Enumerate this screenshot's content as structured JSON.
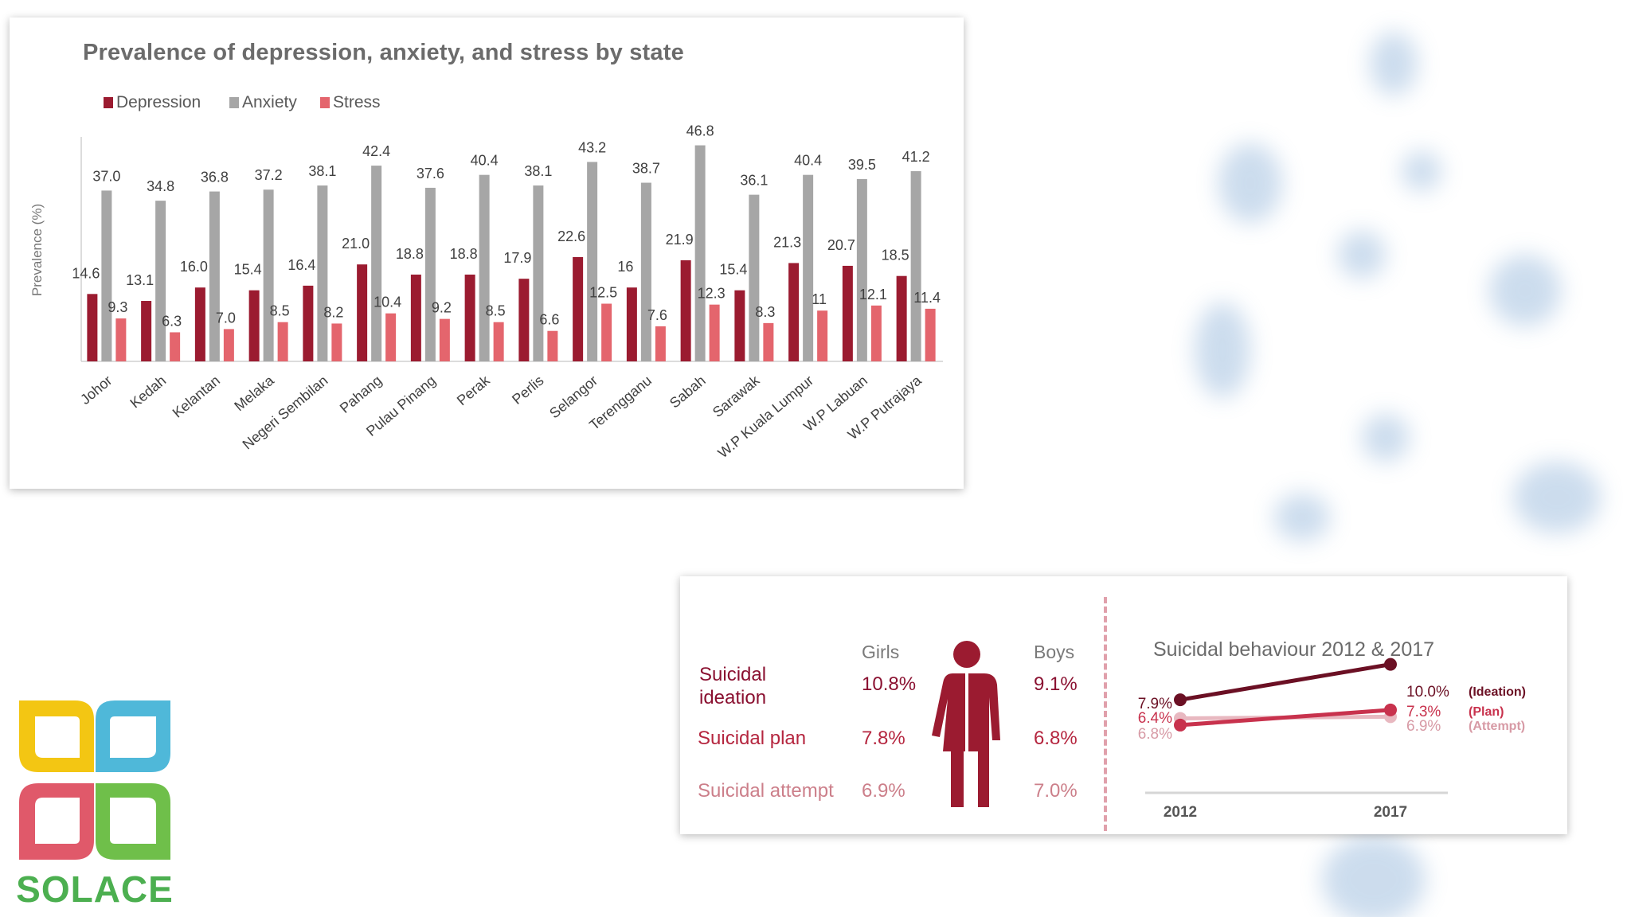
{
  "colors": {
    "depression": "#9b1b30",
    "anxiety": "#a6a6a6",
    "stress": "#e4656d",
    "ideation": "#6b1024",
    "plan": "#c8324d",
    "attempt": "#e8b8c0"
  },
  "chart_data": [
    {
      "type": "bar",
      "title": "Prevalence of depression, anxiety, and stress by state",
      "ylabel": "Prevalence (%)",
      "xlabel": "",
      "ylim": [
        0,
        50
      ],
      "legend_position": "top-left",
      "categories": [
        "Johor",
        "Kedah",
        "Kelantan",
        "Melaka",
        "Negeri Sembilan",
        "Pahang",
        "Pulau Pinang",
        "Perak",
        "Perlis",
        "Selangor",
        "Terengganu",
        "Sabah",
        "Sarawak",
        "W.P Kuala Lumpur",
        "W.P Labuan",
        "W.P Putrajaya"
      ],
      "series": [
        {
          "name": "Depression",
          "values": [
            14.6,
            13.1,
            16.0,
            15.4,
            16.4,
            21.0,
            18.8,
            18.8,
            17.9,
            22.6,
            16,
            21.9,
            15.4,
            21.3,
            20.7,
            18.5
          ],
          "labels": [
            "14.6",
            "13.1",
            "16.0",
            "15.4",
            "16.4",
            "21.0",
            "18.8",
            "18.8",
            "17.9",
            "22.6",
            "16",
            "21.9",
            "15.4",
            "21.3",
            "20.7",
            "18.5"
          ]
        },
        {
          "name": "Anxiety",
          "values": [
            37.0,
            34.8,
            36.8,
            37.2,
            38.1,
            42.4,
            37.6,
            40.4,
            38.1,
            43.2,
            38.7,
            46.8,
            36.1,
            40.4,
            39.5,
            41.2
          ],
          "labels": [
            "37.0",
            "34.8",
            "36.8",
            "37.2",
            "38.1",
            "42.4",
            "37.6",
            "40.4",
            "38.1",
            "43.2",
            "38.7",
            "46.8",
            "36.1",
            "40.4",
            "39.5",
            "41.2"
          ]
        },
        {
          "name": "Stress",
          "values": [
            9.3,
            6.3,
            7.0,
            8.5,
            8.2,
            10.4,
            9.2,
            8.5,
            6.6,
            12.5,
            7.6,
            12.3,
            8.3,
            11,
            12.1,
            11.4
          ],
          "labels": [
            "9.3",
            "6.3",
            "7.0",
            "8.5",
            "8.2",
            "10.4",
            "9.2",
            "8.5",
            "6.6",
            "12.5",
            "7.6",
            "12.3",
            "8.3",
            "11",
            "12.1",
            "11.4"
          ]
        }
      ]
    },
    {
      "type": "line",
      "title": "Suicidal behaviour 2012 & 2017",
      "x": [
        "2012",
        "2017"
      ],
      "ylim": [
        5.5,
        10.5
      ],
      "series": [
        {
          "name": "(Ideation)",
          "values": [
            7.9,
            10.0
          ],
          "labels": [
            "7.9%",
            "10.0%"
          ]
        },
        {
          "name": "(Plan)",
          "values": [
            6.4,
            7.3
          ],
          "labels": [
            "6.4%",
            "7.3%"
          ]
        },
        {
          "name": "(Attempt)",
          "values": [
            6.8,
            6.9
          ],
          "labels": [
            "6.8%",
            "6.9%"
          ]
        }
      ]
    }
  ],
  "suicidal_table": {
    "girls_header": "Girls",
    "boys_header": "Boys",
    "rows": [
      {
        "label_line1": "Suicidal",
        "label_line2": "ideation",
        "girls": "10.8%",
        "boys": "9.1%"
      },
      {
        "label": "Suicidal plan",
        "girls": "7.8%",
        "boys": "6.8%"
      },
      {
        "label": "Suicidal attempt",
        "girls": "6.9%",
        "boys": "7.0%"
      }
    ]
  },
  "logo": {
    "text": "SOLACE"
  }
}
